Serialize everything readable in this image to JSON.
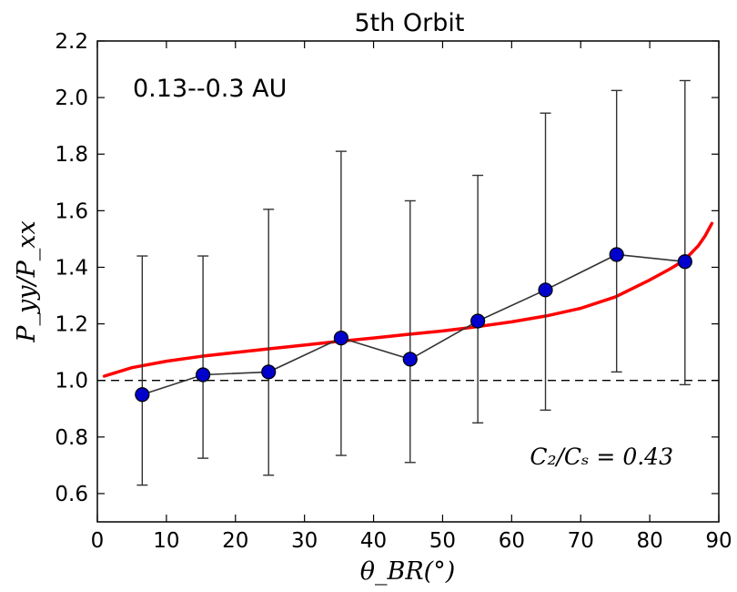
{
  "chart_data": {
    "type": "scatter",
    "title": "5th Orbit",
    "xlabel": "θ_BR(°)",
    "ylabel": "P_yy/P_xx",
    "xlim": [
      0,
      90
    ],
    "ylim": [
      0.5,
      2.2
    ],
    "x_ticks": [
      "0",
      "10",
      "20",
      "30",
      "40",
      "50",
      "60",
      "70",
      "80",
      "90"
    ],
    "x_tick_values": [
      0,
      10,
      20,
      30,
      40,
      50,
      60,
      70,
      80,
      90
    ],
    "y_ticks": [
      "0.6",
      "0.8",
      "1.0",
      "1.2",
      "1.4",
      "1.6",
      "1.8",
      "2.0",
      "2.2"
    ],
    "y_tick_values": [
      0.6,
      0.8,
      1.0,
      1.2,
      1.4,
      1.6,
      1.8,
      2.0,
      2.2
    ],
    "annotation_range": "0.13--0.3 AU",
    "annotation_ratio": "C₂/Cₛ = 0.43",
    "reference_line": {
      "y": 1.0,
      "style": "dashed",
      "color": "#000000"
    },
    "series": [
      {
        "style": "markers+line+errorbars",
        "marker_color": "#0000cc",
        "line_color": "#333333",
        "points": [
          {
            "x": 6.5,
            "y": 0.95,
            "ylow": 0.63,
            "yhigh": 1.44
          },
          {
            "x": 15.3,
            "y": 1.02,
            "ylow": 0.725,
            "yhigh": 1.44
          },
          {
            "x": 24.8,
            "y": 1.03,
            "ylow": 0.665,
            "yhigh": 1.605
          },
          {
            "x": 35.3,
            "y": 1.15,
            "ylow": 0.735,
            "yhigh": 1.81
          },
          {
            "x": 45.3,
            "y": 1.075,
            "ylow": 0.71,
            "yhigh": 1.635
          },
          {
            "x": 55.1,
            "y": 1.21,
            "ylow": 0.85,
            "yhigh": 1.725
          },
          {
            "x": 64.9,
            "y": 1.32,
            "ylow": 0.895,
            "yhigh": 1.945
          },
          {
            "x": 75.2,
            "y": 1.445,
            "ylow": 1.03,
            "yhigh": 2.025
          },
          {
            "x": 85.1,
            "y": 1.42,
            "ylow": 0.985,
            "yhigh": 2.06
          }
        ]
      },
      {
        "style": "line",
        "line_color": "#ff0000",
        "x": [
          1,
          5,
          10,
          15,
          20,
          25,
          30,
          35,
          40,
          45,
          50,
          55,
          60,
          65,
          70,
          75,
          80,
          83,
          85,
          87,
          88,
          89
        ],
        "y": [
          1.015,
          1.045,
          1.068,
          1.085,
          1.099,
          1.112,
          1.125,
          1.138,
          1.15,
          1.163,
          1.175,
          1.19,
          1.207,
          1.228,
          1.255,
          1.295,
          1.355,
          1.395,
          1.425,
          1.475,
          1.51,
          1.555
        ]
      }
    ]
  }
}
